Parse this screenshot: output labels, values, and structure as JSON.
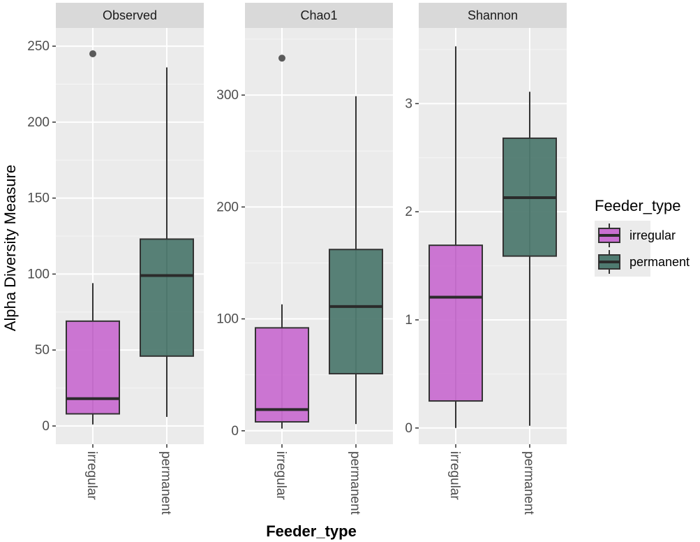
{
  "chart_data": {
    "type": "boxplot",
    "xlabel": "Feeder_type",
    "ylabel": "Alpha Diversity Measure",
    "categories": [
      "irregular",
      "permanent"
    ],
    "legend": {
      "title": "Feeder_type",
      "entries": [
        {
          "label": "irregular",
          "color": "#c96fd1"
        },
        {
          "label": "permanent",
          "color": "#4f7a70"
        }
      ]
    },
    "panels": [
      {
        "title": "Observed",
        "ylim": [
          -12,
          262
        ],
        "yticks": [
          0,
          50,
          100,
          150,
          200,
          250
        ],
        "boxes": [
          {
            "category": "irregular",
            "min": 1,
            "q1": 8,
            "median": 18,
            "q3": 69,
            "max": 94,
            "outliers": [
              245
            ]
          },
          {
            "category": "permanent",
            "min": 6,
            "q1": 46,
            "median": 99,
            "q3": 123,
            "max": 236,
            "outliers": []
          }
        ]
      },
      {
        "title": "Chao1",
        "ylim": [
          -12,
          360
        ],
        "yticks": [
          0,
          100,
          200,
          300
        ],
        "boxes": [
          {
            "category": "irregular",
            "min": 2,
            "q1": 8,
            "median": 19,
            "q3": 92,
            "max": 113,
            "outliers": [
              333
            ]
          },
          {
            "category": "permanent",
            "min": 6,
            "q1": 51,
            "median": 111,
            "q3": 162,
            "max": 299,
            "outliers": []
          }
        ]
      },
      {
        "title": "Shannon",
        "ylim": [
          -0.15,
          3.7
        ],
        "yticks": [
          0,
          1,
          2,
          3
        ],
        "boxes": [
          {
            "category": "irregular",
            "min": 0.0,
            "q1": 0.25,
            "median": 1.21,
            "q3": 1.69,
            "max": 3.53,
            "outliers": []
          },
          {
            "category": "permanent",
            "min": 0.02,
            "q1": 1.59,
            "median": 2.13,
            "q3": 2.68,
            "max": 3.11,
            "outliers": []
          }
        ]
      }
    ]
  }
}
